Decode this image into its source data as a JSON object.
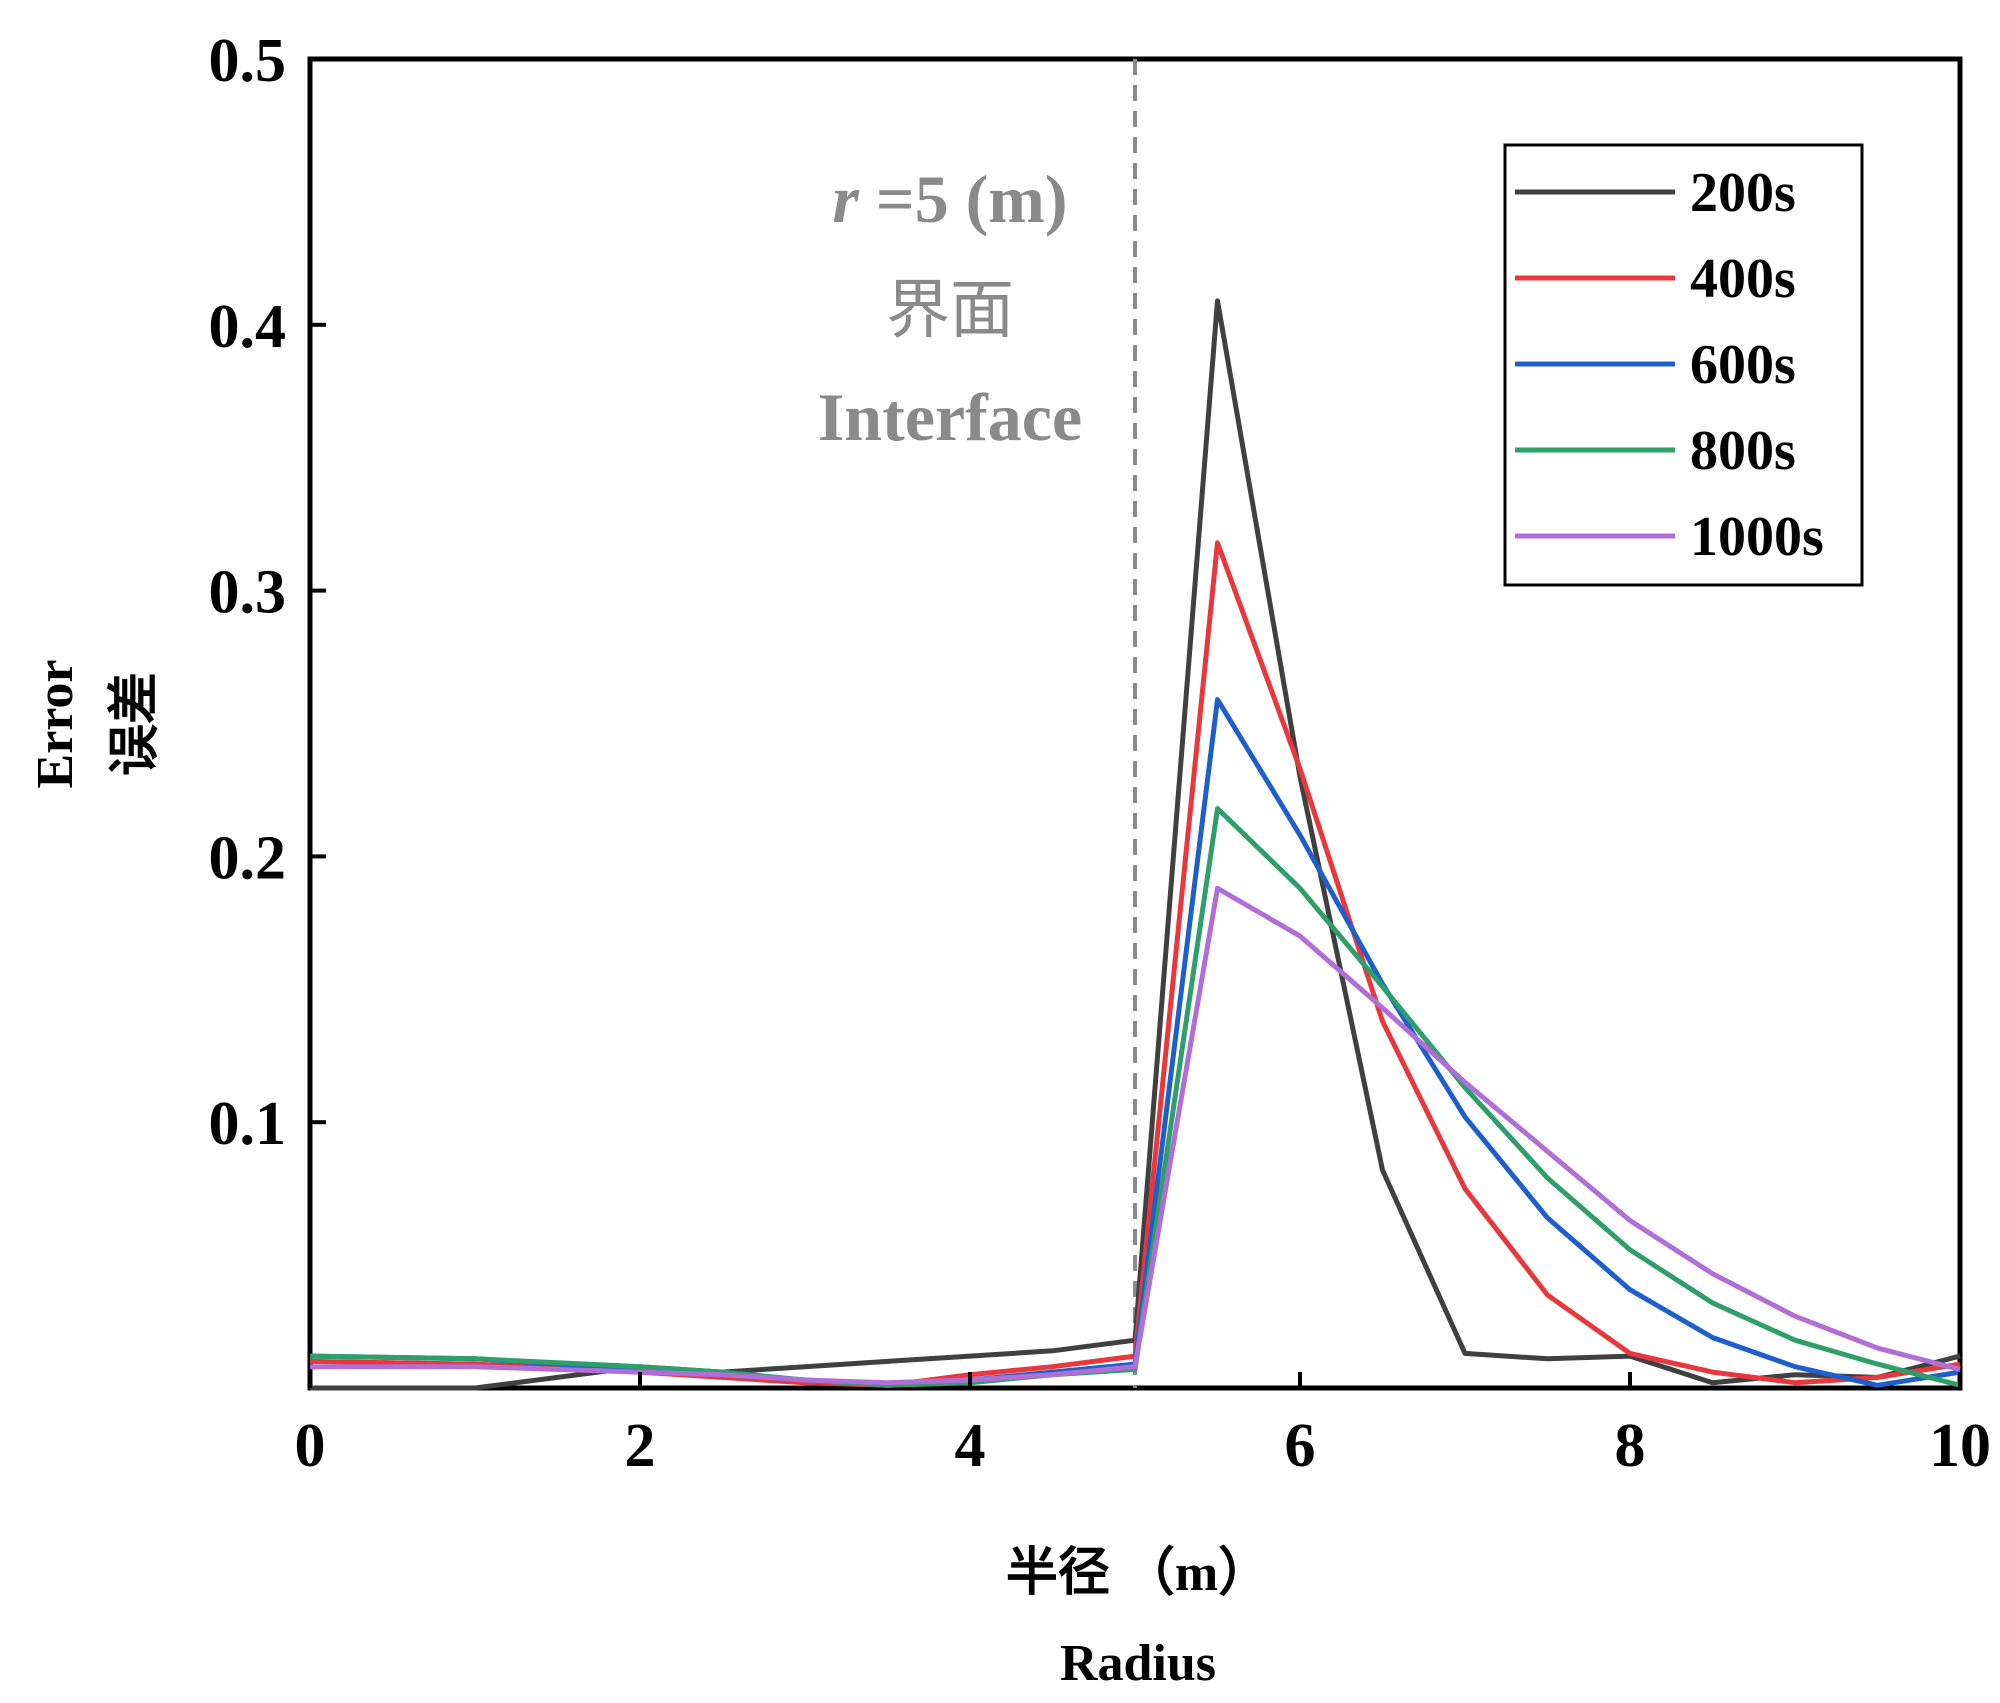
{
  "chart_data": {
    "type": "line",
    "xlabel_cn": "半径 （m）",
    "xlabel": "Radius",
    "ylabel": "Error",
    "ylabel_cn": "误差",
    "xlim": [
      0,
      10
    ],
    "ylim": [
      0,
      0.5
    ],
    "xticks": [
      0,
      2,
      4,
      6,
      8,
      10
    ],
    "xtick_labels": [
      "0",
      "2",
      "4",
      "6",
      "8",
      "10"
    ],
    "yticks": [
      0.1,
      0.2,
      0.3,
      0.4,
      0.5
    ],
    "ytick_labels": [
      "0.1",
      "0.2",
      "0.3",
      "0.4",
      "0.5"
    ],
    "legend_position": "top-right",
    "annotation": {
      "x": 5,
      "label_italic": "r",
      "label_rest": " =5 (m)",
      "label_cn": "界面",
      "label_en": "Interface"
    },
    "x": [
      0,
      1,
      2,
      2.5,
      3,
      3.5,
      4,
      4.5,
      5,
      5.5,
      6,
      6.5,
      7,
      7.5,
      8,
      8.5,
      9,
      9.5,
      10
    ],
    "series": [
      {
        "name": "200s",
        "color": "#404040",
        "values": [
          0.0,
          0.0,
          0.008,
          0.006,
          0.008,
          0.01,
          0.012,
          0.014,
          0.018,
          0.409,
          0.23,
          0.082,
          0.013,
          0.011,
          0.012,
          0.002,
          0.005,
          0.004,
          0.012
        ]
      },
      {
        "name": "400s",
        "color": "#e8383d",
        "values": [
          0.01,
          0.009,
          0.006,
          0.004,
          0.002,
          0.001,
          0.005,
          0.008,
          0.012,
          0.318,
          0.233,
          0.138,
          0.075,
          0.035,
          0.013,
          0.006,
          0.002,
          0.004,
          0.009
        ]
      },
      {
        "name": "600s",
        "color": "#1f5fcc",
        "values": [
          0.012,
          0.011,
          0.007,
          0.005,
          0.003,
          0.001,
          0.003,
          0.006,
          0.009,
          0.259,
          0.208,
          0.152,
          0.102,
          0.064,
          0.037,
          0.019,
          0.008,
          0.001,
          0.006
        ]
      },
      {
        "name": "800s",
        "color": "#2e9e6a",
        "values": [
          0.012,
          0.011,
          0.008,
          0.006,
          0.003,
          0.001,
          0.002,
          0.005,
          0.007,
          0.218,
          0.188,
          0.151,
          0.113,
          0.079,
          0.052,
          0.032,
          0.018,
          0.009,
          0.001
        ]
      },
      {
        "name": "1000s",
        "color": "#b06ed6",
        "values": [
          0.008,
          0.008,
          0.006,
          0.005,
          0.003,
          0.002,
          0.003,
          0.005,
          0.008,
          0.188,
          0.17,
          0.143,
          0.115,
          0.089,
          0.063,
          0.043,
          0.027,
          0.015,
          0.007
        ]
      }
    ]
  }
}
